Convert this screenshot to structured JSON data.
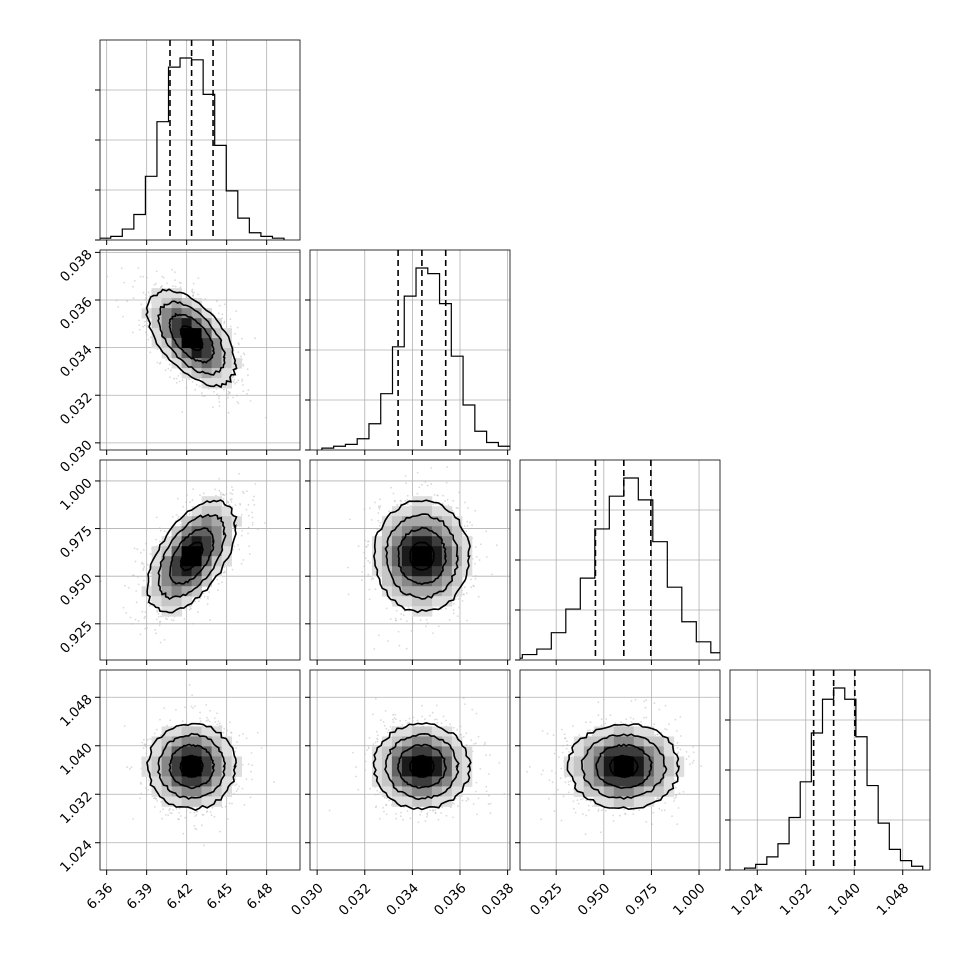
{
  "chart_data": {
    "type": "corner",
    "parameters": [
      {
        "ticks": [
          "6.36",
          "6.39",
          "6.42",
          "6.45",
          "6.48"
        ],
        "range": [
          6.355,
          6.505
        ],
        "median": 6.4237,
        "quantiles": [
          6.4075,
          6.4398
        ],
        "sd": 0.0165,
        "hist": [
          1,
          2,
          6,
          14,
          35,
          65,
          95,
          100,
          99,
          80,
          52,
          27,
          12,
          4,
          2,
          1
        ]
      },
      {
        "ticks": [
          "0.030",
          "0.032",
          "0.034",
          "0.036",
          "0.038"
        ],
        "range": [
          0.0297,
          0.0381
        ],
        "median": 0.0344,
        "quantiles": [
          0.0334,
          0.0354
        ],
        "sd": 0.001,
        "hist": [
          1,
          2,
          3,
          6,
          14,
          30,
          55,
          82,
          97,
          94,
          78,
          50,
          24,
          10,
          4,
          2,
          1
        ]
      },
      {
        "ticks": [
          "0.925",
          "0.950",
          "0.975",
          "1.000"
        ],
        "range": [
          0.906,
          1.011
        ],
        "median": 0.9605,
        "quantiles": [
          0.9456,
          0.9747
        ],
        "sd": 0.0145,
        "hist": [
          1,
          3,
          6,
          15,
          28,
          45,
          72,
          90,
          100,
          88,
          65,
          40,
          21,
          10,
          4,
          1
        ]
      },
      {
        "ticks": [
          "1.024",
          "1.032",
          "1.040",
          "1.048"
        ],
        "range": [
          1.0195,
          1.0525
        ],
        "median": 1.0366,
        "quantiles": [
          1.0333,
          1.0401
        ],
        "sd": 0.0035,
        "hist": [
          1,
          3,
          7,
          14,
          28,
          47,
          73,
          91,
          97,
          91,
          71,
          45,
          25,
          11,
          5,
          2
        ]
      }
    ],
    "correlations": [
      [
        1,
        -0.55,
        0.55,
        0
      ],
      [
        -0.55,
        1,
        0,
        0
      ],
      [
        0.55,
        0,
        1,
        0
      ],
      [
        0,
        0,
        0,
        1
      ]
    ],
    "quantile_lines": "dashed",
    "grid": true,
    "colors": {
      "contour": "#000000",
      "scatter": "#bbbbbb",
      "grid": "#b0b0b0"
    }
  }
}
